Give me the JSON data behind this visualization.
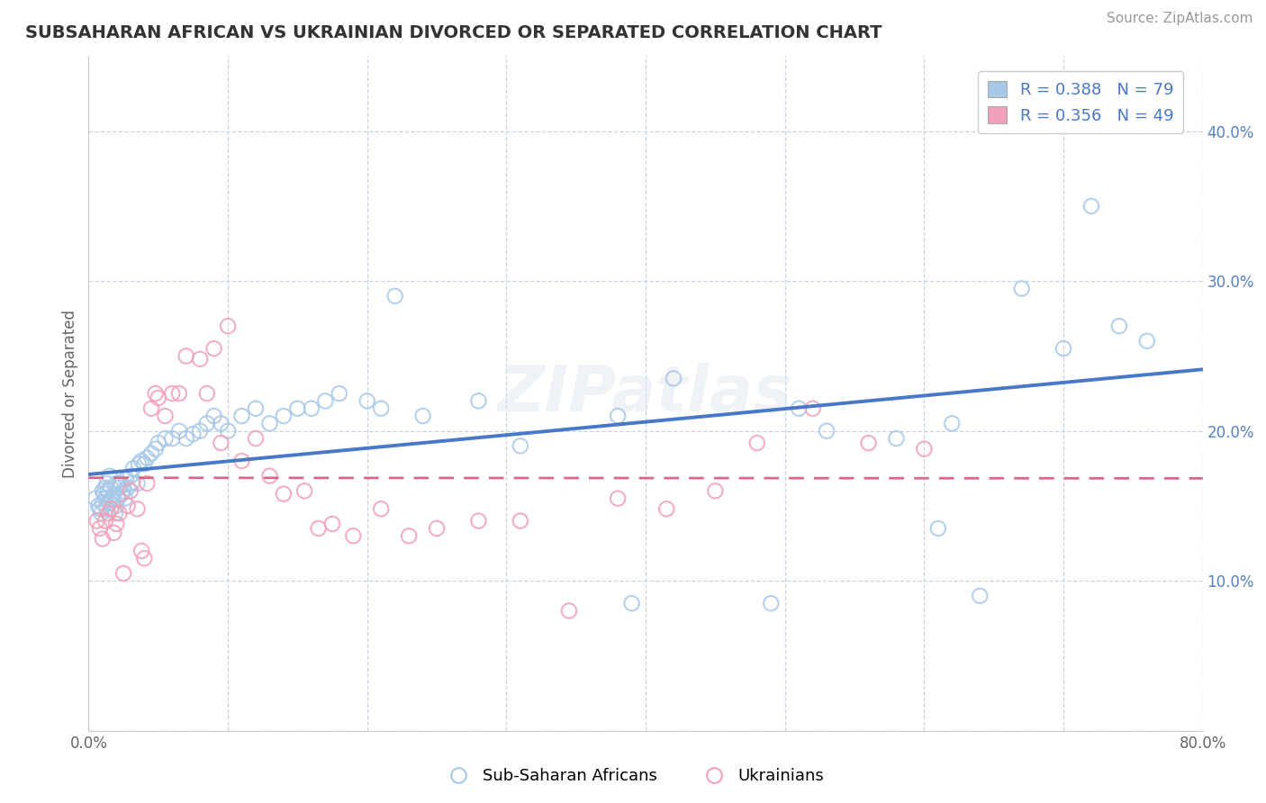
{
  "title": "SUBSAHARAN AFRICAN VS UKRAINIAN DIVORCED OR SEPARATED CORRELATION CHART",
  "source": "Source: ZipAtlas.com",
  "ylabel": "Divorced or Separated",
  "xlim": [
    0.0,
    0.8
  ],
  "ylim": [
    0.0,
    0.45
  ],
  "xticks": [
    0.0,
    0.1,
    0.2,
    0.3,
    0.4,
    0.5,
    0.6,
    0.7,
    0.8
  ],
  "yticks": [
    0.0,
    0.1,
    0.2,
    0.3,
    0.4
  ],
  "legend_labels": [
    "Sub-Saharan Africans",
    "Ukrainians"
  ],
  "r_blue": 0.388,
  "n_blue": 79,
  "r_pink": 0.356,
  "n_pink": 49,
  "blue_color": "#a8c8e8",
  "pink_color": "#f0a0b8",
  "blue_line_color": "#4878c8",
  "pink_line_color": "#d86888",
  "grid_color": "#c8d4e4",
  "watermark": "ZIPatlas",
  "blue_scatter_x": [
    0.005,
    0.007,
    0.008,
    0.009,
    0.01,
    0.01,
    0.011,
    0.012,
    0.012,
    0.013,
    0.013,
    0.014,
    0.015,
    0.015,
    0.016,
    0.016,
    0.017,
    0.018,
    0.019,
    0.02,
    0.02,
    0.021,
    0.022,
    0.023,
    0.024,
    0.025,
    0.026,
    0.027,
    0.028,
    0.03,
    0.031,
    0.032,
    0.035,
    0.036,
    0.038,
    0.04,
    0.042,
    0.045,
    0.048,
    0.05,
    0.055,
    0.06,
    0.065,
    0.07,
    0.075,
    0.08,
    0.085,
    0.09,
    0.095,
    0.1,
    0.11,
    0.12,
    0.13,
    0.14,
    0.15,
    0.16,
    0.17,
    0.18,
    0.2,
    0.21,
    0.22,
    0.24,
    0.28,
    0.31,
    0.38,
    0.39,
    0.42,
    0.49,
    0.51,
    0.53,
    0.58,
    0.61,
    0.62,
    0.64,
    0.67,
    0.7,
    0.72,
    0.74,
    0.76
  ],
  "blue_scatter_y": [
    0.155,
    0.15,
    0.148,
    0.145,
    0.152,
    0.16,
    0.158,
    0.155,
    0.162,
    0.148,
    0.165,
    0.16,
    0.152,
    0.17,
    0.148,
    0.162,
    0.155,
    0.158,
    0.145,
    0.15,
    0.165,
    0.155,
    0.162,
    0.165,
    0.158,
    0.16,
    0.155,
    0.168,
    0.162,
    0.17,
    0.165,
    0.175,
    0.165,
    0.178,
    0.18,
    0.178,
    0.182,
    0.185,
    0.188,
    0.192,
    0.195,
    0.195,
    0.2,
    0.195,
    0.198,
    0.2,
    0.205,
    0.21,
    0.205,
    0.2,
    0.21,
    0.215,
    0.205,
    0.21,
    0.215,
    0.215,
    0.22,
    0.225,
    0.22,
    0.215,
    0.29,
    0.21,
    0.22,
    0.19,
    0.21,
    0.085,
    0.235,
    0.085,
    0.215,
    0.2,
    0.195,
    0.135,
    0.205,
    0.09,
    0.295,
    0.255,
    0.35,
    0.27,
    0.26
  ],
  "pink_scatter_x": [
    0.006,
    0.008,
    0.01,
    0.012,
    0.014,
    0.016,
    0.018,
    0.02,
    0.022,
    0.025,
    0.028,
    0.03,
    0.035,
    0.038,
    0.04,
    0.042,
    0.045,
    0.048,
    0.05,
    0.055,
    0.06,
    0.065,
    0.07,
    0.08,
    0.085,
    0.09,
    0.095,
    0.1,
    0.11,
    0.12,
    0.13,
    0.14,
    0.155,
    0.165,
    0.175,
    0.19,
    0.21,
    0.23,
    0.25,
    0.28,
    0.31,
    0.345,
    0.38,
    0.415,
    0.45,
    0.48,
    0.52,
    0.56,
    0.6
  ],
  "pink_scatter_y": [
    0.14,
    0.135,
    0.128,
    0.14,
    0.145,
    0.148,
    0.132,
    0.138,
    0.145,
    0.105,
    0.15,
    0.16,
    0.148,
    0.12,
    0.115,
    0.165,
    0.215,
    0.225,
    0.222,
    0.21,
    0.225,
    0.225,
    0.25,
    0.248,
    0.225,
    0.255,
    0.192,
    0.27,
    0.18,
    0.195,
    0.17,
    0.158,
    0.16,
    0.135,
    0.138,
    0.13,
    0.148,
    0.13,
    0.135,
    0.14,
    0.14,
    0.08,
    0.155,
    0.148,
    0.16,
    0.192,
    0.215,
    0.192,
    0.188
  ]
}
